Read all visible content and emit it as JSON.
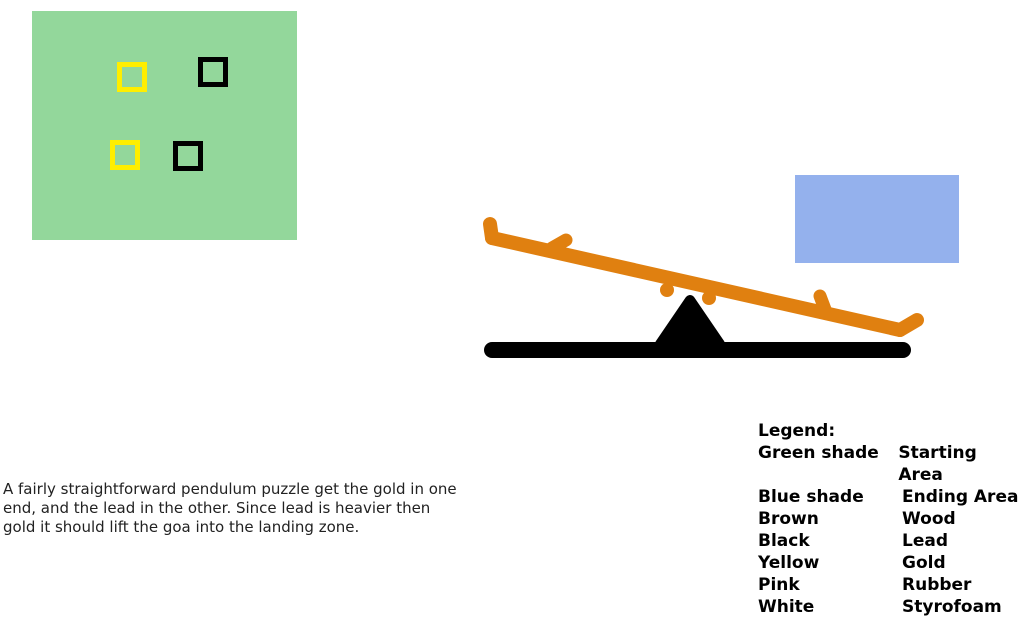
{
  "colors": {
    "starting_area": "#93d79b",
    "ending_area": "#94b1ed",
    "wood": "#e08010",
    "lead": "#000000",
    "gold": "#ffee00"
  },
  "description": "A fairly straightforward pendulum puzzle get the gold in one end, and the lead in the other. Since lead is heavier then gold it should lift the goa into the landing zone.",
  "legend": {
    "title": "Legend:",
    "items": [
      {
        "color": "Green shade",
        "meaning": "Starting Area"
      },
      {
        "color": "Blue shade",
        "meaning": "Ending Area"
      },
      {
        "color": "Brown",
        "meaning": "Wood"
      },
      {
        "color": "Black",
        "meaning": "Lead"
      },
      {
        "color": "Yellow",
        "meaning": "Gold"
      },
      {
        "color": "Pink",
        "meaning": "Rubber"
      },
      {
        "color": "White",
        "meaning": "Styrofoam"
      }
    ]
  }
}
